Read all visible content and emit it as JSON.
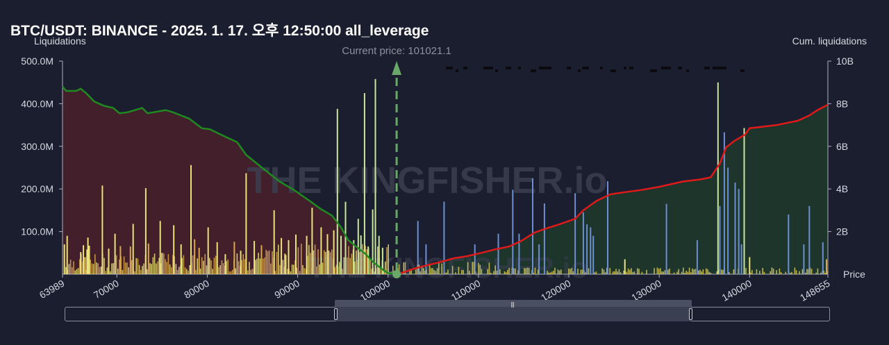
{
  "chart_data": {
    "type": "bar",
    "title": "BTC/USDT: BINANCE - 2025. 1. 17. 오후 12:50:00 all_leverage",
    "ylabel_left": "Liquidations",
    "ylabel_right": "Cum. liquidations",
    "xlabel": "Price",
    "xlim": [
      63989,
      148655
    ],
    "ylim_left": [
      0,
      500000000
    ],
    "ylim_right": [
      0,
      10000000000
    ],
    "left_ticks": [
      "500.0M",
      "400.0M",
      "300.0M",
      "200.0M",
      "100.0M"
    ],
    "right_ticks": [
      "10B",
      "8B",
      "6B",
      "4B",
      "2B"
    ],
    "x_ticks": [
      "63989",
      "70000",
      "80000",
      "90000",
      "100000",
      "110000",
      "120000",
      "130000",
      "140000",
      "148655"
    ],
    "current_price_label": "Current price: 101021.1",
    "current_price": 100950,
    "watermark": "THE KINGFISHER.io",
    "colors": {
      "short_side_bars": "#e8e37a",
      "short_side_bars_alt": "#d9a84e",
      "long_side_bars": "#6d8fd1",
      "long_side_bars_alt": "#d8c95c",
      "cum_long": "#1f8a1f",
      "cum_short": "#e01a1a",
      "fill_long": "#4a1f2a",
      "fill_short": "#1f3a2a",
      "marker": "#6aa86a"
    },
    "bars_tall": [
      {
        "x": 64200,
        "y": 70000000,
        "c": "yellow"
      },
      {
        "x": 64500,
        "y": 90000000,
        "c": "yellow"
      },
      {
        "x": 66000,
        "y": 52000000,
        "c": "yellow"
      },
      {
        "x": 66300,
        "y": 68000000,
        "c": "yellow"
      },
      {
        "x": 66500,
        "y": 40000000,
        "c": "orange"
      },
      {
        "x": 66700,
        "y": 58000000,
        "c": "yellow"
      },
      {
        "x": 66800,
        "y": 86000000,
        "c": "yellow"
      },
      {
        "x": 66950,
        "y": 67000000,
        "c": "yellow"
      },
      {
        "x": 68400,
        "y": 208000000,
        "c": "yellow"
      },
      {
        "x": 69100,
        "y": 60000000,
        "c": "yellow"
      },
      {
        "x": 69800,
        "y": 95000000,
        "c": "yellow"
      },
      {
        "x": 70400,
        "y": 66000000,
        "c": "orange"
      },
      {
        "x": 71500,
        "y": 65000000,
        "c": "orange"
      },
      {
        "x": 71800,
        "y": 118000000,
        "c": "yellow"
      },
      {
        "x": 73200,
        "y": 202000000,
        "c": "yellow"
      },
      {
        "x": 73500,
        "y": 72000000,
        "c": "orange"
      },
      {
        "x": 74800,
        "y": 125000000,
        "c": "yellow"
      },
      {
        "x": 75000,
        "y": 50000000,
        "c": "yellow"
      },
      {
        "x": 76300,
        "y": 115000000,
        "c": "yellow"
      },
      {
        "x": 77100,
        "y": 70000000,
        "c": "yellow"
      },
      {
        "x": 78200,
        "y": 256000000,
        "c": "yellow"
      },
      {
        "x": 78600,
        "y": 82000000,
        "c": "orange"
      },
      {
        "x": 79100,
        "y": 62000000,
        "c": "orange"
      },
      {
        "x": 80100,
        "y": 110000000,
        "c": "yellow"
      },
      {
        "x": 81100,
        "y": 75000000,
        "c": "yellow"
      },
      {
        "x": 82000,
        "y": 47000000,
        "c": "yellow"
      },
      {
        "x": 83000,
        "y": 76000000,
        "c": "orange"
      },
      {
        "x": 83700,
        "y": 55000000,
        "c": "yellow"
      },
      {
        "x": 84300,
        "y": 237000000,
        "c": "yellow"
      },
      {
        "x": 85200,
        "y": 78000000,
        "c": "yellow"
      },
      {
        "x": 86000,
        "y": 68000000,
        "c": "orange"
      },
      {
        "x": 87400,
        "y": 150000000,
        "c": "yellow"
      },
      {
        "x": 88200,
        "y": 85000000,
        "c": "yellow"
      },
      {
        "x": 88600,
        "y": 48000000,
        "c": "yellow"
      },
      {
        "x": 89000,
        "y": 80000000,
        "c": "yellow"
      },
      {
        "x": 89800,
        "y": 93000000,
        "c": "yellow"
      },
      {
        "x": 91000,
        "y": 90000000,
        "c": "yellow"
      },
      {
        "x": 91600,
        "y": 156000000,
        "c": "yellow"
      },
      {
        "x": 92600,
        "y": 110000000,
        "c": "yellow"
      },
      {
        "x": 93300,
        "y": 94000000,
        "c": "yellow"
      },
      {
        "x": 94000,
        "y": 103000000,
        "c": "yellow"
      },
      {
        "x": 94400,
        "y": 388000000,
        "c": "light"
      },
      {
        "x": 94800,
        "y": 90000000,
        "c": "light"
      },
      {
        "x": 95300,
        "y": 170000000,
        "c": "light"
      },
      {
        "x": 96200,
        "y": 80000000,
        "c": "light"
      },
      {
        "x": 96700,
        "y": 130000000,
        "c": "light"
      },
      {
        "x": 97000,
        "y": 91000000,
        "c": "light"
      },
      {
        "x": 97400,
        "y": 425000000,
        "c": "light"
      },
      {
        "x": 97800,
        "y": 65000000,
        "c": "light"
      },
      {
        "x": 98300,
        "y": 152000000,
        "c": "light"
      },
      {
        "x": 98600,
        "y": 458000000,
        "c": "light"
      },
      {
        "x": 99000,
        "y": 90000000,
        "c": "light"
      },
      {
        "x": 99400,
        "y": 62000000,
        "c": "light"
      },
      {
        "x": 103300,
        "y": 125000000,
        "c": "blue"
      },
      {
        "x": 104200,
        "y": 70000000,
        "c": "blue"
      },
      {
        "x": 106200,
        "y": 170000000,
        "c": "blue"
      },
      {
        "x": 109600,
        "y": 70000000,
        "c": "blue"
      },
      {
        "x": 112200,
        "y": 95000000,
        "c": "blue"
      },
      {
        "x": 113800,
        "y": 198000000,
        "c": "blue"
      },
      {
        "x": 114500,
        "y": 95000000,
        "c": "blue"
      },
      {
        "x": 116000,
        "y": 225000000,
        "c": "blue"
      },
      {
        "x": 116700,
        "y": 70000000,
        "c": "blue"
      },
      {
        "x": 117300,
        "y": 166000000,
        "c": "blue"
      },
      {
        "x": 120700,
        "y": 190000000,
        "c": "blue"
      },
      {
        "x": 121600,
        "y": 145000000,
        "c": "blue"
      },
      {
        "x": 122000,
        "y": 117000000,
        "c": "blue"
      },
      {
        "x": 122400,
        "y": 110000000,
        "c": "blue"
      },
      {
        "x": 122700,
        "y": 90000000,
        "c": "blue"
      },
      {
        "x": 124300,
        "y": 218000000,
        "c": "blue"
      },
      {
        "x": 126200,
        "y": 35000000,
        "c": "yellow"
      },
      {
        "x": 130800,
        "y": 165000000,
        "c": "blue"
      },
      {
        "x": 134200,
        "y": 80000000,
        "c": "blue"
      },
      {
        "x": 136500,
        "y": 450000000,
        "c": "light"
      },
      {
        "x": 136700,
        "y": 160000000,
        "c": "blue"
      },
      {
        "x": 137200,
        "y": 333000000,
        "c": "blue"
      },
      {
        "x": 137600,
        "y": 250000000,
        "c": "blue"
      },
      {
        "x": 138400,
        "y": 215000000,
        "c": "blue"
      },
      {
        "x": 138800,
        "y": 200000000,
        "c": "blue"
      },
      {
        "x": 139100,
        "y": 70000000,
        "c": "blue"
      },
      {
        "x": 139400,
        "y": 343000000,
        "c": "light"
      },
      {
        "x": 140000,
        "y": 40000000,
        "c": "yellow"
      },
      {
        "x": 144300,
        "y": 140000000,
        "c": "blue"
      },
      {
        "x": 146000,
        "y": 70000000,
        "c": "blue"
      },
      {
        "x": 146600,
        "y": 160000000,
        "c": "blue"
      },
      {
        "x": 148100,
        "y": 75000000,
        "c": "blue"
      },
      {
        "x": 148500,
        "y": 35000000,
        "c": "orange"
      }
    ],
    "cum_long": [
      [
        63989,
        8800000000.0
      ],
      [
        64400,
        8600000000.0
      ],
      [
        65500,
        8600000000.0
      ],
      [
        66000,
        8700000000.0
      ],
      [
        66600,
        8500000000.0
      ],
      [
        67500,
        8100000000.0
      ],
      [
        68600,
        7900000000.0
      ],
      [
        69600,
        7800000000.0
      ],
      [
        70300,
        7550000000.0
      ],
      [
        71200,
        7600000000.0
      ],
      [
        72800,
        7800000000.0
      ],
      [
        73400,
        7550000000.0
      ],
      [
        75400,
        7700000000.0
      ],
      [
        76200,
        7600000000.0
      ],
      [
        78000,
        7300000000.0
      ],
      [
        79400,
        6850000000.0
      ],
      [
        80300,
        6800000000.0
      ],
      [
        81500,
        6550000000.0
      ],
      [
        83300,
        6200000000.0
      ],
      [
        84300,
        5600000000.0
      ],
      [
        86200,
        4950000000.0
      ],
      [
        88000,
        4350000000.0
      ],
      [
        89600,
        3950000000.0
      ],
      [
        91300,
        3450000000.0
      ],
      [
        92600,
        3050000000.0
      ],
      [
        93800,
        2750000000.0
      ],
      [
        94800,
        2200000000.0
      ],
      [
        95600,
        1600000000.0
      ],
      [
        96600,
        1250000000.0
      ],
      [
        97500,
        950000000.0
      ],
      [
        98400,
        550000000.0
      ],
      [
        99300,
        250000000.0
      ],
      [
        100000,
        50000000.0
      ],
      [
        100950,
        0
      ]
    ],
    "cum_short": [
      [
        100950,
        0
      ],
      [
        101800,
        100000000.0
      ],
      [
        102800,
        250000000.0
      ],
      [
        104300,
        420000000.0
      ],
      [
        105600,
        550000000.0
      ],
      [
        107300,
        750000000.0
      ],
      [
        108800,
        850000000.0
      ],
      [
        110300,
        1000000000.0
      ],
      [
        111700,
        1150000000.0
      ],
      [
        113400,
        1300000000.0
      ],
      [
        114700,
        1550000000.0
      ],
      [
        116200,
        1950000000.0
      ],
      [
        117500,
        2150000000.0
      ],
      [
        119000,
        2350000000.0
      ],
      [
        120700,
        2600000000.0
      ],
      [
        121600,
        3000000000.0
      ],
      [
        123100,
        3450000000.0
      ],
      [
        124600,
        3750000000.0
      ],
      [
        126200,
        3850000000.0
      ],
      [
        128000,
        3950000000.0
      ],
      [
        130000,
        4100000000.0
      ],
      [
        132600,
        4350000000.0
      ],
      [
        134600,
        4450000000.0
      ],
      [
        135700,
        4550000000.0
      ],
      [
        136700,
        5200000000.0
      ],
      [
        137400,
        5950000000.0
      ],
      [
        138300,
        6250000000.0
      ],
      [
        139500,
        6550000000.0
      ],
      [
        140000,
        6850000000.0
      ],
      [
        143000,
        7000000000.0
      ],
      [
        145300,
        7200000000.0
      ],
      [
        146600,
        7450000000.0
      ],
      [
        147500,
        7700000000.0
      ],
      [
        148655,
        7950000000.0
      ]
    ]
  }
}
